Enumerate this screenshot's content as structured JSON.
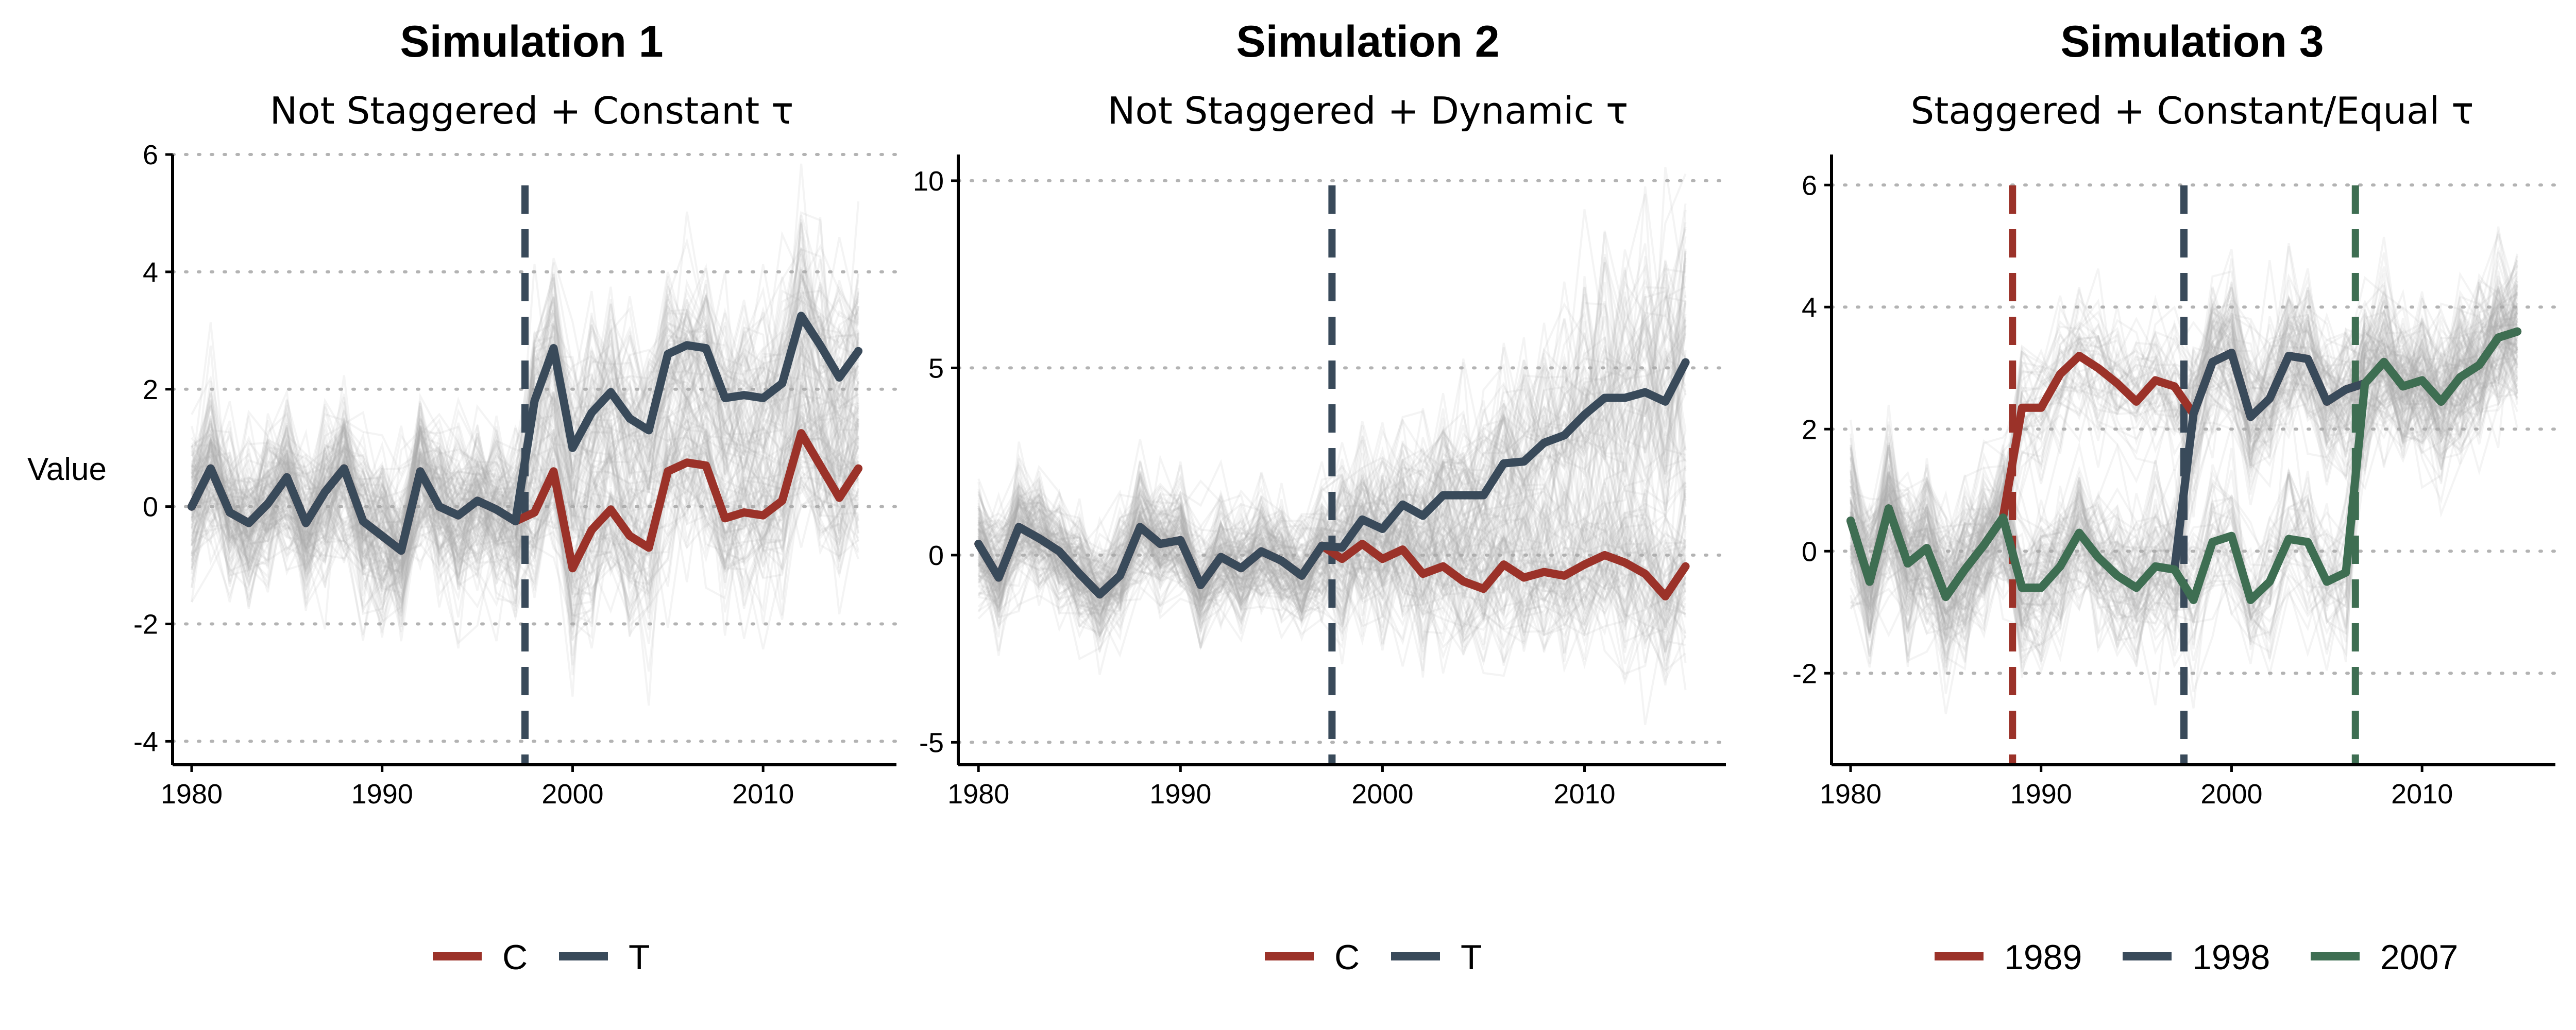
{
  "colors": {
    "C": "#9b3229",
    "T": "#394a5a",
    "g1989": "#9b3229",
    "g1998": "#394a5a",
    "g2007": "#3e6e52",
    "background_lines": "#aaaaaa"
  },
  "chart_data": [
    {
      "type": "line",
      "title": "Simulation 1",
      "subtitle": "Not Staggered + Constant τ",
      "ylabel": "Value",
      "xlabel": "",
      "xlim": [
        1979,
        2017
      ],
      "ylim": [
        -4.4,
        6.0
      ],
      "x_ticks": [
        1980,
        1990,
        2000,
        2010
      ],
      "y_ticks": [
        -4,
        -2,
        0,
        2,
        4,
        6
      ],
      "grid": "horizontal dotted",
      "legend_position": "bottom",
      "background": {
        "description_free": true,
        "n_lines": 140,
        "spread_pre": 0.75,
        "spread_post": 1.0
      },
      "treatment_lines": [
        {
          "x": 1997.5,
          "series": "T"
        }
      ],
      "x": [
        1980,
        1981,
        1982,
        1983,
        1984,
        1985,
        1986,
        1987,
        1988,
        1989,
        1990,
        1991,
        1992,
        1993,
        1994,
        1995,
        1996,
        1997,
        1998,
        1999,
        2000,
        2001,
        2002,
        2003,
        2004,
        2005,
        2006,
        2007,
        2008,
        2009,
        2010,
        2011,
        2012,
        2013,
        2014,
        2015
      ],
      "series": [
        {
          "name": "C",
          "values": [
            0.0,
            0.65,
            -0.1,
            -0.28,
            0.05,
            0.5,
            -0.28,
            0.25,
            0.65,
            -0.25,
            -0.5,
            -0.75,
            0.6,
            0.0,
            -0.15,
            0.1,
            -0.05,
            -0.25,
            -0.1,
            0.6,
            -1.05,
            -0.4,
            -0.05,
            -0.5,
            -0.7,
            0.6,
            0.75,
            0.7,
            -0.2,
            -0.1,
            -0.15,
            0.1,
            1.25,
            0.7,
            0.15,
            0.65
          ]
        },
        {
          "name": "T",
          "values": [
            0.0,
            0.65,
            -0.1,
            -0.28,
            0.05,
            0.5,
            -0.28,
            0.25,
            0.65,
            -0.25,
            -0.5,
            -0.75,
            0.6,
            0.0,
            -0.15,
            0.1,
            -0.05,
            -0.25,
            1.8,
            2.7,
            1.0,
            1.6,
            1.95,
            1.5,
            1.3,
            2.6,
            2.75,
            2.7,
            1.85,
            1.9,
            1.85,
            2.1,
            3.25,
            2.75,
            2.2,
            2.65
          ]
        }
      ]
    },
    {
      "type": "line",
      "title": "Simulation 2",
      "subtitle": "Not Staggered + Dynamic τ",
      "ylabel": "",
      "xlabel": "",
      "xlim": [
        1979,
        2017
      ],
      "ylim": [
        -5.6,
        10.7
      ],
      "x_ticks": [
        1980,
        1990,
        2000,
        2010
      ],
      "y_ticks": [
        -5,
        0,
        5,
        10
      ],
      "grid": "horizontal dotted",
      "legend_position": "bottom",
      "background": {
        "n_lines": 140,
        "spread_pre": 0.9,
        "spread_post": 1.4
      },
      "treatment_lines": [
        {
          "x": 1997.5,
          "series": "T"
        }
      ],
      "x": [
        1980,
        1981,
        1982,
        1983,
        1984,
        1985,
        1986,
        1987,
        1988,
        1989,
        1990,
        1991,
        1992,
        1993,
        1994,
        1995,
        1996,
        1997,
        1998,
        1999,
        2000,
        2001,
        2002,
        2003,
        2004,
        2005,
        2006,
        2007,
        2008,
        2009,
        2010,
        2011,
        2012,
        2013,
        2014,
        2015
      ],
      "series": [
        {
          "name": "C",
          "values": [
            0.3,
            -0.6,
            0.75,
            0.45,
            0.1,
            -0.5,
            -1.05,
            -0.55,
            0.75,
            0.3,
            0.4,
            -0.8,
            -0.05,
            -0.35,
            0.1,
            -0.15,
            -0.55,
            0.25,
            -0.1,
            0.3,
            -0.1,
            0.15,
            -0.5,
            -0.3,
            -0.7,
            -0.9,
            -0.25,
            -0.6,
            -0.45,
            -0.55,
            -0.25,
            0.0,
            -0.2,
            -0.5,
            -1.1,
            -0.3
          ]
        },
        {
          "name": "T",
          "values": [
            0.3,
            -0.6,
            0.75,
            0.45,
            0.1,
            -0.5,
            -1.05,
            -0.55,
            0.75,
            0.3,
            0.4,
            -0.8,
            -0.05,
            -0.35,
            0.1,
            -0.15,
            -0.55,
            0.25,
            0.2,
            0.95,
            0.7,
            1.35,
            1.05,
            1.6,
            1.6,
            1.6,
            2.45,
            2.5,
            3.0,
            3.2,
            3.75,
            4.2,
            4.2,
            4.35,
            4.1,
            5.15
          ]
        }
      ]
    },
    {
      "type": "line",
      "title": "Simulation 3",
      "subtitle": "Staggered + Constant/Equal τ",
      "ylabel": "",
      "xlabel": "",
      "xlim": [
        1979,
        2017
      ],
      "ylim": [
        -3.5,
        6.5
      ],
      "x_ticks": [
        1980,
        1990,
        2000,
        2010
      ],
      "y_ticks": [
        -2,
        0,
        2,
        4,
        6
      ],
      "grid": "horizontal dotted",
      "legend_position": "bottom",
      "background": {
        "n_lines": 140,
        "spread_pre": 0.75,
        "spread_post": 0.7
      },
      "treatment_lines": [
        {
          "x": 1988.5,
          "series": "1989"
        },
        {
          "x": 1997.5,
          "series": "1998"
        },
        {
          "x": 2006.5,
          "series": "2007"
        }
      ],
      "x": [
        1980,
        1981,
        1982,
        1983,
        1984,
        1985,
        1986,
        1987,
        1988,
        1989,
        1990,
        1991,
        1992,
        1993,
        1994,
        1995,
        1996,
        1997,
        1998,
        1999,
        2000,
        2001,
        2002,
        2003,
        2004,
        2005,
        2006,
        2007,
        2008,
        2009,
        2010,
        2011,
        2012,
        2013,
        2014,
        2015
      ],
      "series": [
        {
          "name": "1989",
          "values": [
            0.5,
            -0.5,
            0.7,
            -0.2,
            0.05,
            -0.75,
            -0.3,
            0.1,
            0.55,
            2.35,
            2.35,
            2.9,
            3.2,
            3.0,
            2.75,
            2.45,
            2.8,
            2.7,
            2.25,
            3.1,
            3.25,
            2.2,
            2.5,
            3.2,
            3.15,
            2.45,
            2.65,
            2.75,
            3.1,
            2.7,
            2.8,
            2.45,
            2.85,
            3.05,
            3.5,
            3.6
          ]
        },
        {
          "name": "1998",
          "values": [
            0.5,
            -0.5,
            0.7,
            -0.2,
            0.05,
            -0.75,
            -0.3,
            0.1,
            0.55,
            -0.6,
            -0.6,
            -0.25,
            0.3,
            -0.1,
            -0.4,
            -0.6,
            -0.25,
            -0.3,
            2.25,
            3.1,
            3.25,
            2.2,
            2.5,
            3.2,
            3.15,
            2.45,
            2.65,
            2.75,
            3.1,
            2.7,
            2.8,
            2.45,
            2.85,
            3.05,
            3.5,
            3.6
          ]
        },
        {
          "name": "2007",
          "values": [
            0.5,
            -0.5,
            0.7,
            -0.2,
            0.05,
            -0.75,
            -0.3,
            0.1,
            0.55,
            -0.6,
            -0.6,
            -0.25,
            0.3,
            -0.1,
            -0.4,
            -0.6,
            -0.25,
            -0.3,
            -0.8,
            0.15,
            0.25,
            -0.8,
            -0.5,
            0.2,
            0.15,
            -0.5,
            -0.35,
            2.75,
            3.1,
            2.7,
            2.8,
            2.45,
            2.85,
            3.05,
            3.5,
            3.6
          ]
        }
      ]
    }
  ],
  "legends": [
    [
      {
        "label": "C",
        "color_key": "C"
      },
      {
        "label": "T",
        "color_key": "T"
      }
    ],
    [
      {
        "label": "C",
        "color_key": "C"
      },
      {
        "label": "T",
        "color_key": "T"
      }
    ],
    [
      {
        "label": "1989",
        "color_key": "g1989"
      },
      {
        "label": "1998",
        "color_key": "g1998"
      },
      {
        "label": "2007",
        "color_key": "g2007"
      }
    ]
  ]
}
